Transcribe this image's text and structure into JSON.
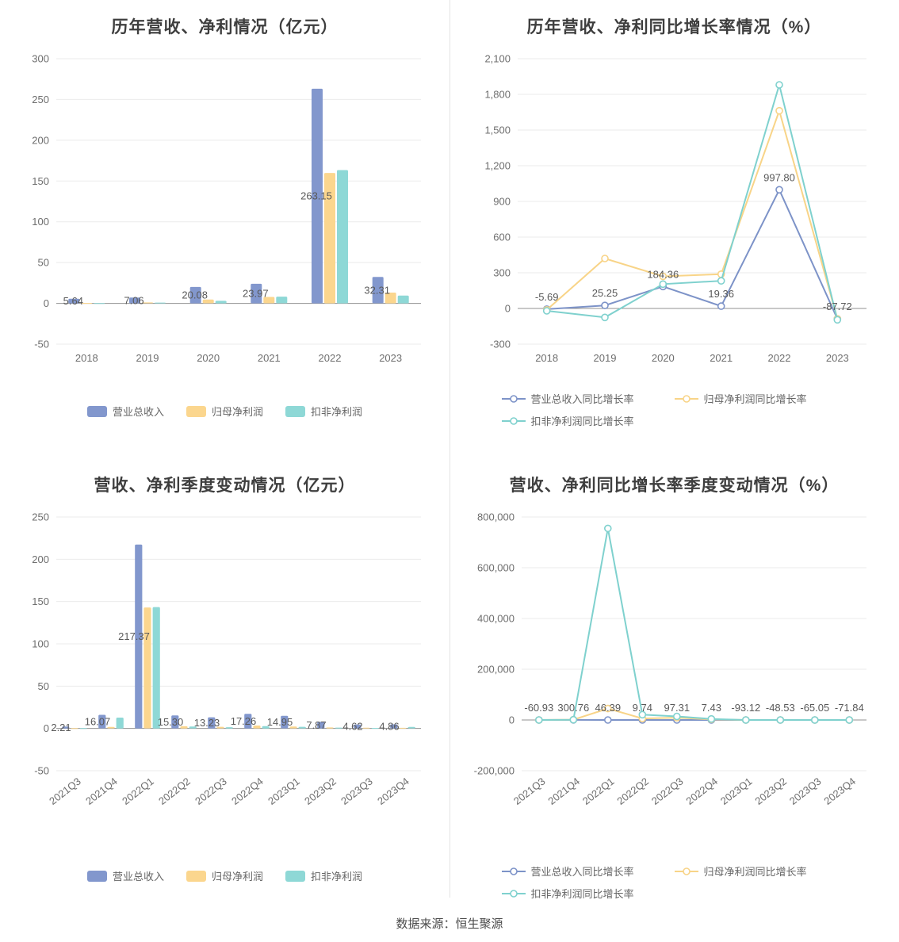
{
  "footer": {
    "source": "数据来源：恒生聚源"
  },
  "chart_data": [
    {
      "type": "bar",
      "title": "历年营收、净利情况（亿元）",
      "categories": [
        "2018",
        "2019",
        "2020",
        "2021",
        "2022",
        "2023"
      ],
      "series": [
        {
          "name": "营业总收入",
          "color": "#8297cd",
          "values": [
            5.64,
            7.06,
            20.08,
            23.97,
            263.15,
            32.31
          ]
        },
        {
          "name": "归母净利润",
          "color": "#fbd68e",
          "values": [
            0.6,
            1.1,
            4.6,
            7.8,
            159.9,
            13.2
          ]
        },
        {
          "name": "扣非净利润",
          "color": "#8ed8d6",
          "values": [
            0.4,
            0.9,
            3.1,
            8.2,
            163.4,
            9.6
          ]
        }
      ],
      "value_labels": [
        "5.64",
        "7.06",
        "20.08",
        "23.97",
        "263.15",
        "32.31"
      ],
      "ylim": [
        -50,
        300
      ],
      "yticks": [
        -50,
        0,
        50,
        100,
        150,
        200,
        250,
        300
      ],
      "rotate_x": false,
      "legend_rows": [
        [
          0,
          1,
          2
        ]
      ],
      "legend_position": "bottom-center",
      "grid": true
    },
    {
      "type": "line",
      "title": "历年营收、净利同比增长率情况（%）",
      "categories": [
        "2018",
        "2019",
        "2020",
        "2021",
        "2022",
        "2023"
      ],
      "series": [
        {
          "name": "营业总收入同比增长率",
          "color": "#7d93c8",
          "values": [
            -5.69,
            25.25,
            184.36,
            19.36,
            997.8,
            -87.72
          ]
        },
        {
          "name": "归母净利润同比增长率",
          "color": "#f8d488",
          "values": [
            -12,
            420,
            270,
            288,
            1662,
            -88
          ]
        },
        {
          "name": "扣非净利润同比增长率",
          "color": "#7fd1ce",
          "values": [
            -20,
            -75,
            205,
            232,
            1880,
            -95
          ]
        }
      ],
      "value_labels": [
        "-5.69",
        "25.25",
        "184.36",
        "19.36",
        "997.80",
        "-87.72"
      ],
      "ylim": [
        -300,
        2100
      ],
      "yticks": [
        -300,
        0,
        300,
        600,
        900,
        1200,
        1500,
        1800,
        2100
      ],
      "rotate_x": false,
      "legend_rows": [
        [
          0,
          1
        ],
        [
          2
        ]
      ],
      "legend_position": "bottom-left-grid",
      "grid": true
    },
    {
      "type": "bar",
      "title": "营收、净利季度变动情况（亿元）",
      "categories": [
        "2021Q3",
        "2021Q4",
        "2022Q1",
        "2022Q2",
        "2022Q3",
        "2022Q4",
        "2023Q1",
        "2023Q2",
        "2023Q3",
        "2023Q4"
      ],
      "series": [
        {
          "name": "营业总收入",
          "color": "#8297cd",
          "values": [
            2.21,
            16.07,
            217.37,
            15.3,
            13.23,
            17.26,
            14.95,
            7.87,
            4.62,
            4.86
          ]
        },
        {
          "name": "归母净利润",
          "color": "#fbd68e",
          "values": [
            0.4,
            1.8,
            143.0,
            2.6,
            1.9,
            3.4,
            2.2,
            1.2,
            0.9,
            0.7
          ]
        },
        {
          "name": "扣非净利润",
          "color": "#8ed8d6",
          "values": [
            0.3,
            12.8,
            143.5,
            2.2,
            1.5,
            2.8,
            1.9,
            1.0,
            0.6,
            1.8
          ]
        }
      ],
      "value_labels": [
        "2.21",
        "16.07",
        "217.37",
        "15.30",
        "13.23",
        "17.26",
        "14.95",
        "7.87",
        "4.62",
        "4.86"
      ],
      "ylim": [
        -50,
        250
      ],
      "yticks": [
        -50,
        0,
        50,
        100,
        150,
        200,
        250
      ],
      "rotate_x": true,
      "legend_rows": [
        [
          0,
          1,
          2
        ]
      ],
      "legend_position": "bottom-center",
      "grid": true
    },
    {
      "type": "line",
      "title": "营收、净利同比增长率季度变动情况（%）",
      "categories": [
        "2021Q3",
        "2021Q4",
        "2022Q1",
        "2022Q2",
        "2022Q3",
        "2022Q4",
        "2023Q1",
        "2023Q2",
        "2023Q3",
        "2023Q4"
      ],
      "series": [
        {
          "name": "营业总收入同比增长率",
          "color": "#7d93c8",
          "values": [
            -60.93,
            300.76,
            46.39,
            9.74,
            97.31,
            7.43,
            -93.12,
            -48.53,
            -65.05,
            -71.84
          ]
        },
        {
          "name": "归母净利润同比增长率",
          "color": "#f8d488",
          "values": [
            -80,
            1200,
            45000,
            6000,
            9000,
            2500,
            -85,
            -60,
            -72,
            -66
          ]
        },
        {
          "name": "扣非净利润同比增长率",
          "color": "#7fd1ce",
          "values": [
            -90,
            800,
            755000,
            21000,
            14000,
            4000,
            -92,
            -55,
            -68,
            -70
          ]
        }
      ],
      "value_labels": [
        "-60.93",
        "300.76",
        "46.39",
        "9.74",
        "97.31",
        "7.43",
        "-93.12",
        "-48.53",
        "-65.05",
        "-71.84"
      ],
      "ylim": [
        -200000,
        800000
      ],
      "yticks": [
        -200000,
        0,
        200000,
        400000,
        600000,
        800000
      ],
      "rotate_x": true,
      "legend_rows": [
        [
          0,
          1
        ],
        [
          2
        ]
      ],
      "legend_position": "bottom-left-grid",
      "grid": true
    }
  ]
}
